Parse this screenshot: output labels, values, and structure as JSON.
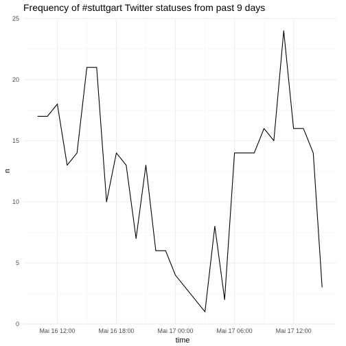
{
  "chart_data": {
    "type": "line",
    "title": "Frequency of #stuttgart Twitter statuses from past 9 days",
    "xlabel": "time",
    "ylabel": "n",
    "x_unit": "hour",
    "x_start": "2019-05-16 10:00",
    "x": [
      "Mai 16 10:00",
      "Mai 16 11:00",
      "Mai 16 12:00",
      "Mai 16 13:00",
      "Mai 16 14:00",
      "Mai 16 15:00",
      "Mai 16 16:00",
      "Mai 16 17:00",
      "Mai 16 18:00",
      "Mai 16 19:00",
      "Mai 16 20:00",
      "Mai 16 21:00",
      "Mai 16 22:00",
      "Mai 16 23:00",
      "Mai 17 00:00",
      "Mai 17 03:00",
      "Mai 17 04:00",
      "Mai 17 05:00",
      "Mai 17 06:00",
      "Mai 17 07:00",
      "Mai 17 08:00",
      "Mai 17 09:00",
      "Mai 17 10:00",
      "Mai 17 11:00",
      "Mai 17 12:00",
      "Mai 17 13:00",
      "Mai 17 14:00"
    ],
    "x_hours": [
      0,
      1,
      2,
      3,
      4,
      5,
      6,
      7,
      8,
      9,
      10,
      11,
      12,
      13,
      14,
      17,
      18,
      19,
      20,
      21,
      22,
      23,
      24,
      25,
      26,
      27,
      28
    ],
    "values": [
      17,
      17,
      18,
      13,
      14,
      21,
      21,
      10,
      14,
      13,
      7,
      13,
      6,
      6,
      4,
      1,
      8,
      2,
      14,
      14,
      14,
      16,
      15,
      24,
      16,
      16,
      14
    ],
    "last_point": {
      "x_hours": 28.9,
      "value": 3
    },
    "x_ticks": [
      {
        "label": "Mai 16 12:00",
        "hour": 2
      },
      {
        "label": "Mai 16 18:00",
        "hour": 8
      },
      {
        "label": "Mai 17 00:00",
        "hour": 14
      },
      {
        "label": "Mai 17 06:00",
        "hour": 20
      },
      {
        "label": "Mai 17 12:00",
        "hour": 26
      }
    ],
    "y_ticks": [
      0,
      5,
      10,
      15,
      20,
      25
    ],
    "xlim_hours": [
      -1.45,
      30.35
    ],
    "ylim": [
      0,
      25
    ],
    "grid": true,
    "line_color": "#000000",
    "grid_color": "#ebebeb"
  }
}
